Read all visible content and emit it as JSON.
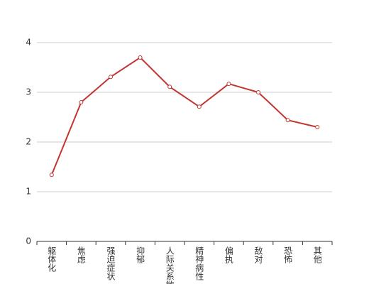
{
  "chart_data": {
    "type": "line",
    "categories": [
      "躯体化",
      "焦虑",
      "强迫症状",
      "抑郁",
      "人际关系敏感",
      "精神病性",
      "偏执",
      "敌对",
      "恐怖",
      "其他"
    ],
    "series": [
      {
        "color": "#c23531",
        "values": [
          1.34,
          2.8,
          3.31,
          3.7,
          3.11,
          2.71,
          3.17,
          3.0,
          2.44,
          2.3
        ]
      }
    ],
    "ylim": [
      0,
      4
    ],
    "yticks": [
      0,
      1,
      2,
      3,
      4
    ],
    "grid": true
  }
}
